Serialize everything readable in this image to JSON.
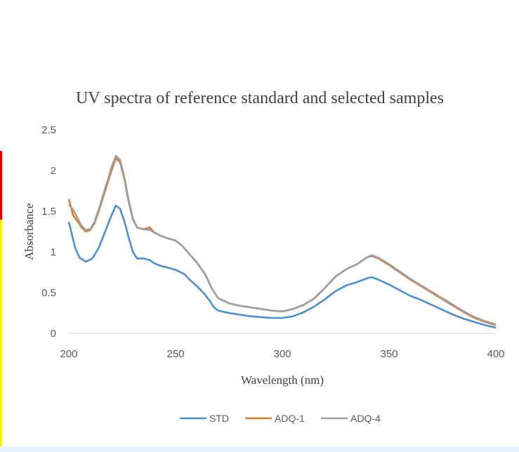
{
  "chart_data": {
    "type": "line",
    "title": "UV spectra of reference standard and selected samples",
    "xlabel": "Wavelength  (nm)",
    "ylabel": "Absorbance",
    "xlim": [
      200,
      400
    ],
    "ylim": [
      0,
      2.5
    ],
    "x_ticks": [
      "200",
      "250",
      "300",
      "350",
      "400"
    ],
    "y_ticks": [
      "0",
      "0.5",
      "1",
      "1.5",
      "2",
      "2.5"
    ],
    "grid": false,
    "legend_position": "bottom",
    "series": [
      {
        "name": "STD",
        "color": "#4a8fd6",
        "points": [
          [
            200,
            1.37
          ],
          [
            203,
            1.05
          ],
          [
            205,
            0.93
          ],
          [
            208,
            0.88
          ],
          [
            211,
            0.92
          ],
          [
            214,
            1.05
          ],
          [
            217,
            1.25
          ],
          [
            220,
            1.45
          ],
          [
            222,
            1.57
          ],
          [
            224,
            1.53
          ],
          [
            226,
            1.38
          ],
          [
            228,
            1.18
          ],
          [
            230,
            1.0
          ],
          [
            232,
            0.92
          ],
          [
            235,
            0.92
          ],
          [
            238,
            0.9
          ],
          [
            240,
            0.86
          ],
          [
            243,
            0.83
          ],
          [
            246,
            0.81
          ],
          [
            250,
            0.78
          ],
          [
            254,
            0.73
          ],
          [
            257,
            0.65
          ],
          [
            260,
            0.58
          ],
          [
            263,
            0.5
          ],
          [
            266,
            0.4
          ],
          [
            268,
            0.32
          ],
          [
            270,
            0.28
          ],
          [
            275,
            0.25
          ],
          [
            280,
            0.23
          ],
          [
            285,
            0.21
          ],
          [
            290,
            0.2
          ],
          [
            295,
            0.19
          ],
          [
            300,
            0.19
          ],
          [
            305,
            0.21
          ],
          [
            310,
            0.26
          ],
          [
            315,
            0.33
          ],
          [
            320,
            0.42
          ],
          [
            325,
            0.52
          ],
          [
            330,
            0.59
          ],
          [
            335,
            0.63
          ],
          [
            340,
            0.68
          ],
          [
            342,
            0.69
          ],
          [
            345,
            0.66
          ],
          [
            350,
            0.6
          ],
          [
            355,
            0.53
          ],
          [
            360,
            0.46
          ],
          [
            365,
            0.41
          ],
          [
            370,
            0.35
          ],
          [
            375,
            0.29
          ],
          [
            380,
            0.23
          ],
          [
            385,
            0.18
          ],
          [
            390,
            0.14
          ],
          [
            395,
            0.1
          ],
          [
            400,
            0.07
          ]
        ]
      },
      {
        "name": "ADQ-1",
        "color": "#e07a2e",
        "points": [
          [
            200,
            1.65
          ],
          [
            202,
            1.45
          ],
          [
            204,
            1.38
          ],
          [
            206,
            1.3
          ],
          [
            208,
            1.25
          ],
          [
            210,
            1.27
          ],
          [
            212,
            1.35
          ],
          [
            214,
            1.5
          ],
          [
            217,
            1.75
          ],
          [
            220,
            2.0
          ],
          [
            222,
            2.15
          ],
          [
            224,
            2.1
          ],
          [
            226,
            1.9
          ],
          [
            228,
            1.62
          ],
          [
            230,
            1.4
          ],
          [
            232,
            1.3
          ],
          [
            235,
            1.28
          ],
          [
            238,
            1.3
          ],
          [
            240,
            1.24
          ],
          [
            243,
            1.2
          ],
          [
            246,
            1.17
          ],
          [
            250,
            1.14
          ],
          [
            253,
            1.08
          ],
          [
            256,
            0.99
          ],
          [
            260,
            0.87
          ],
          [
            264,
            0.72
          ],
          [
            267,
            0.55
          ],
          [
            270,
            0.43
          ],
          [
            275,
            0.37
          ],
          [
            280,
            0.34
          ],
          [
            285,
            0.32
          ],
          [
            290,
            0.3
          ],
          [
            295,
            0.28
          ],
          [
            300,
            0.27
          ],
          [
            305,
            0.3
          ],
          [
            310,
            0.35
          ],
          [
            315,
            0.43
          ],
          [
            320,
            0.56
          ],
          [
            325,
            0.7
          ],
          [
            330,
            0.79
          ],
          [
            335,
            0.85
          ],
          [
            340,
            0.94
          ],
          [
            342,
            0.95
          ],
          [
            345,
            0.92
          ],
          [
            350,
            0.84
          ],
          [
            355,
            0.75
          ],
          [
            360,
            0.66
          ],
          [
            365,
            0.58
          ],
          [
            370,
            0.5
          ],
          [
            375,
            0.42
          ],
          [
            380,
            0.34
          ],
          [
            385,
            0.26
          ],
          [
            390,
            0.19
          ],
          [
            395,
            0.14
          ],
          [
            400,
            0.1
          ]
        ]
      },
      {
        "name": "ADQ-4",
        "color": "#9e9e9e",
        "points": [
          [
            200,
            1.58
          ],
          [
            202,
            1.52
          ],
          [
            204,
            1.42
          ],
          [
            206,
            1.32
          ],
          [
            208,
            1.27
          ],
          [
            210,
            1.28
          ],
          [
            212,
            1.37
          ],
          [
            214,
            1.52
          ],
          [
            217,
            1.78
          ],
          [
            220,
            2.04
          ],
          [
            222,
            2.18
          ],
          [
            224,
            2.13
          ],
          [
            226,
            1.92
          ],
          [
            228,
            1.64
          ],
          [
            230,
            1.41
          ],
          [
            232,
            1.3
          ],
          [
            235,
            1.28
          ],
          [
            238,
            1.27
          ],
          [
            240,
            1.24
          ],
          [
            243,
            1.2
          ],
          [
            246,
            1.17
          ],
          [
            250,
            1.14
          ],
          [
            253,
            1.08
          ],
          [
            256,
            0.99
          ],
          [
            260,
            0.87
          ],
          [
            264,
            0.72
          ],
          [
            267,
            0.55
          ],
          [
            270,
            0.43
          ],
          [
            275,
            0.37
          ],
          [
            280,
            0.34
          ],
          [
            285,
            0.32
          ],
          [
            290,
            0.3
          ],
          [
            295,
            0.28
          ],
          [
            300,
            0.27
          ],
          [
            305,
            0.3
          ],
          [
            310,
            0.35
          ],
          [
            315,
            0.43
          ],
          [
            320,
            0.56
          ],
          [
            325,
            0.7
          ],
          [
            330,
            0.79
          ],
          [
            335,
            0.85
          ],
          [
            340,
            0.94
          ],
          [
            342,
            0.96
          ],
          [
            345,
            0.93
          ],
          [
            350,
            0.85
          ],
          [
            355,
            0.76
          ],
          [
            360,
            0.67
          ],
          [
            365,
            0.59
          ],
          [
            370,
            0.51
          ],
          [
            375,
            0.43
          ],
          [
            380,
            0.35
          ],
          [
            385,
            0.27
          ],
          [
            390,
            0.2
          ],
          [
            395,
            0.15
          ],
          [
            400,
            0.11
          ]
        ]
      }
    ]
  }
}
